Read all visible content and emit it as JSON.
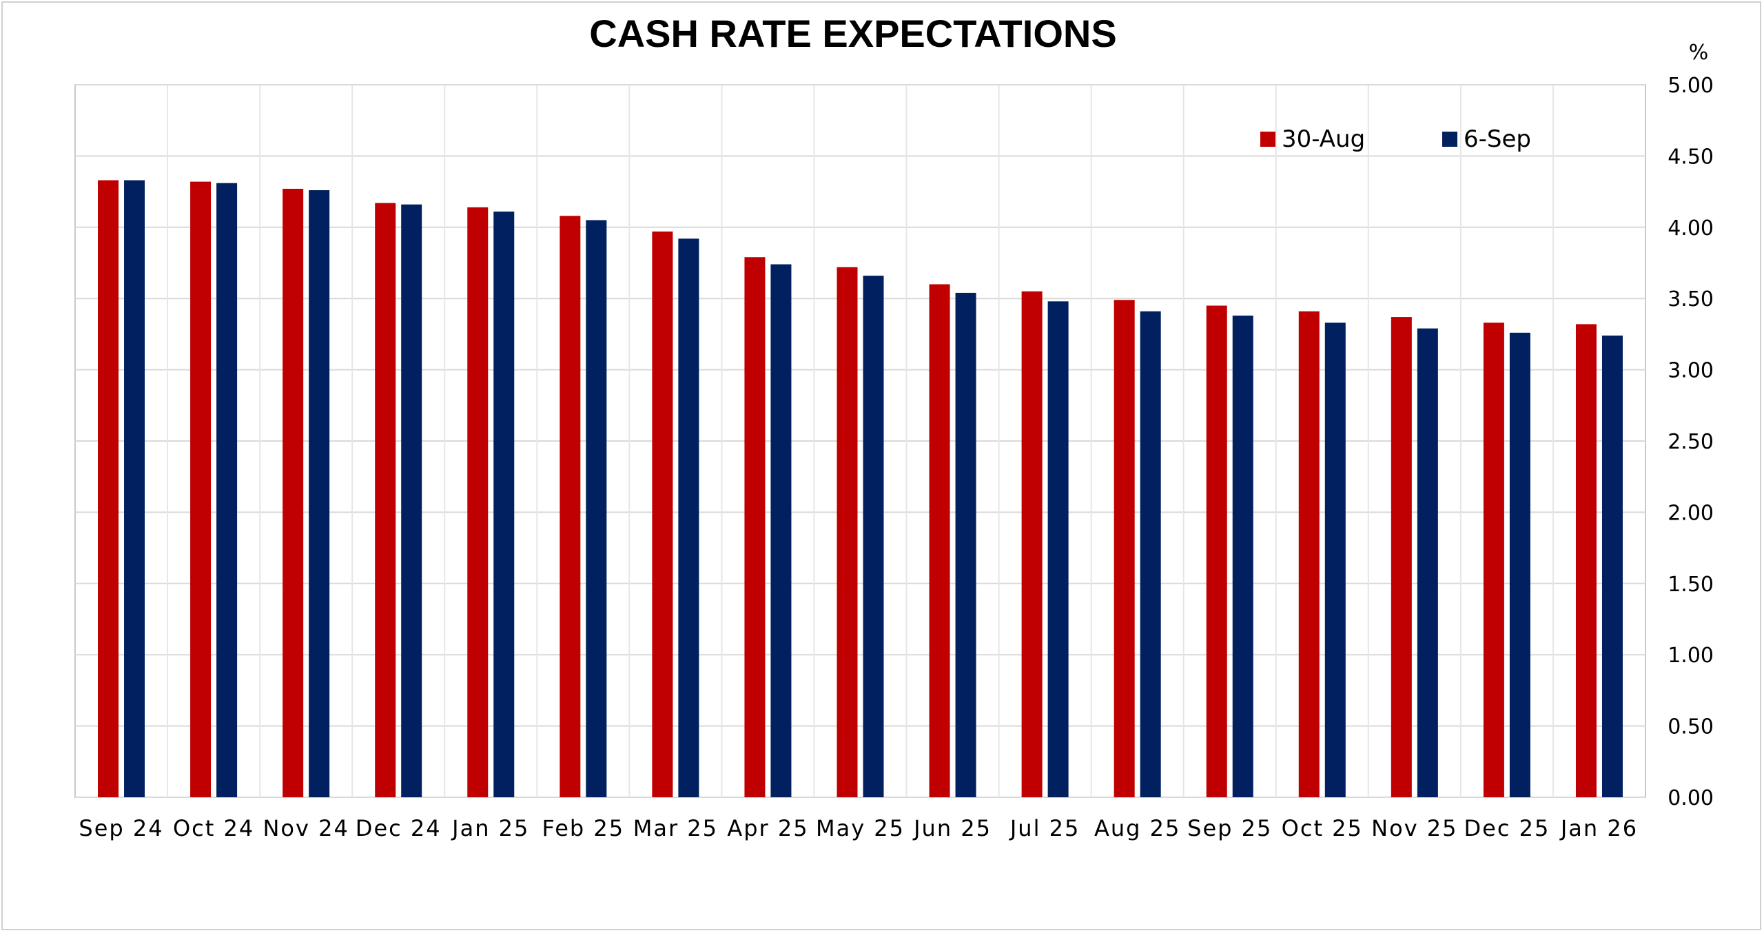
{
  "chart_data": {
    "type": "bar",
    "title": "CASH RATE EXPECTATIONS",
    "ylabel": "%",
    "ylim": [
      0,
      5
    ],
    "yticks": [
      "0.00",
      "0.50",
      "1.00",
      "1.50",
      "2.00",
      "2.50",
      "3.00",
      "3.50",
      "4.00",
      "4.50",
      "5.00"
    ],
    "categories": [
      "Sep 24",
      "Oct 24",
      "Nov 24",
      "Dec 24",
      "Jan 25",
      "Feb 25",
      "Mar 25",
      "Apr 25",
      "May 25",
      "Jun 25",
      "Jul 25",
      "Aug 25",
      "Sep 25",
      "Oct 25",
      "Nov 25",
      "Dec 25",
      "Jan 26"
    ],
    "series": [
      {
        "name": "30-Aug",
        "color": "#c00000",
        "values": [
          4.33,
          4.32,
          4.27,
          4.17,
          4.14,
          4.08,
          3.97,
          3.79,
          3.72,
          3.6,
          3.55,
          3.49,
          3.45,
          3.41,
          3.37,
          3.33,
          3.32
        ]
      },
      {
        "name": "6-Sep",
        "color": "#002060",
        "values": [
          4.33,
          4.31,
          4.26,
          4.16,
          4.11,
          4.05,
          3.92,
          3.74,
          3.66,
          3.54,
          3.48,
          3.41,
          3.38,
          3.33,
          3.29,
          3.26,
          3.24
        ]
      }
    ],
    "grid": true,
    "legend_position": "top-right",
    "y_axis_side": "right"
  }
}
